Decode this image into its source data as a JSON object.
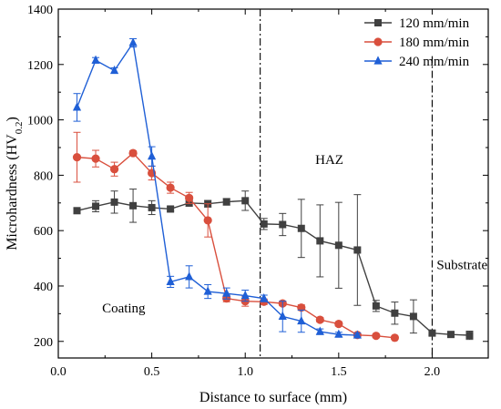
{
  "chart_data": {
    "type": "line",
    "title": "",
    "xlabel": "Distance to surface (mm)",
    "ylabel": {
      "main": "Microhardness (HV",
      "sub": "0.2",
      "close": ")"
    },
    "xlim": [
      0.0,
      2.3
    ],
    "ylim": [
      140,
      1400
    ],
    "xticks": [
      0.0,
      0.5,
      1.0,
      1.5,
      2.0
    ],
    "xtick_labels": [
      "0.0",
      "0.5",
      "1.0",
      "1.5",
      "2.0"
    ],
    "yticks": [
      200,
      400,
      600,
      800,
      1000,
      1200,
      1400
    ],
    "ytick_labels": [
      "200",
      "400",
      "600",
      "800",
      "1000",
      "1200",
      "1400"
    ],
    "grid": false,
    "legend_position": "top-right",
    "series": [
      {
        "name": "120 mm/min",
        "color": "#404040",
        "marker": "square",
        "x": [
          0.1,
          0.2,
          0.3,
          0.4,
          0.5,
          0.6,
          0.7,
          0.8,
          0.9,
          1.0,
          1.1,
          1.2,
          1.3,
          1.4,
          1.5,
          1.6,
          1.7,
          1.8,
          1.9,
          2.0,
          2.1,
          2.2
        ],
        "y": [
          672,
          688,
          703,
          690,
          683,
          678,
          700,
          697,
          704,
          708,
          624,
          622,
          608,
          563,
          547,
          530,
          328,
          302,
          290,
          230,
          225,
          222
        ],
        "err": [
          10,
          20,
          40,
          60,
          25,
          8,
          12,
          12,
          12,
          35,
          20,
          40,
          105,
          130,
          155,
          200,
          20,
          40,
          60,
          8,
          8,
          15
        ]
      },
      {
        "name": "180 mm/min",
        "color": "#d94f3d",
        "marker": "circle",
        "x": [
          0.1,
          0.2,
          0.3,
          0.4,
          0.5,
          0.6,
          0.7,
          0.8,
          0.9,
          1.0,
          1.1,
          1.2,
          1.3,
          1.4,
          1.5,
          1.6,
          1.7,
          1.8
        ],
        "y": [
          865,
          860,
          822,
          880,
          808,
          755,
          718,
          637,
          355,
          345,
          343,
          337,
          322,
          278,
          263,
          223,
          220,
          213
        ],
        "err": [
          90,
          30,
          25,
          8,
          25,
          20,
          20,
          60,
          12,
          18,
          10,
          8,
          10,
          8,
          8,
          5,
          5,
          5
        ]
      },
      {
        "name": "240 mm/min",
        "color": "#1f5fd6",
        "marker": "triangle",
        "x": [
          0.1,
          0.2,
          0.3,
          0.4,
          0.5,
          0.6,
          0.7,
          0.8,
          0.9,
          1.0,
          1.1,
          1.2,
          1.3,
          1.4,
          1.5,
          1.6
        ],
        "y": [
          1045,
          1215,
          1178,
          1278,
          868,
          415,
          433,
          380,
          373,
          365,
          355,
          290,
          273,
          235,
          225,
          222
        ],
        "err": [
          50,
          10,
          10,
          15,
          35,
          20,
          40,
          25,
          20,
          20,
          12,
          55,
          40,
          10,
          8,
          8
        ]
      }
    ],
    "annotations": [
      {
        "text": "Coating",
        "x": 0.35,
        "y": 305
      },
      {
        "text": "HAZ",
        "x": 1.45,
        "y": 840
      },
      {
        "text": "Substrate",
        "x": 2.16,
        "y": 460
      }
    ],
    "vlines": [
      {
        "x": 1.08,
        "from": 140,
        "to": 1400,
        "style": "dashdot"
      },
      {
        "x": 2.0,
        "from": 140,
        "to": 1230,
        "style": "dashdot"
      }
    ]
  }
}
